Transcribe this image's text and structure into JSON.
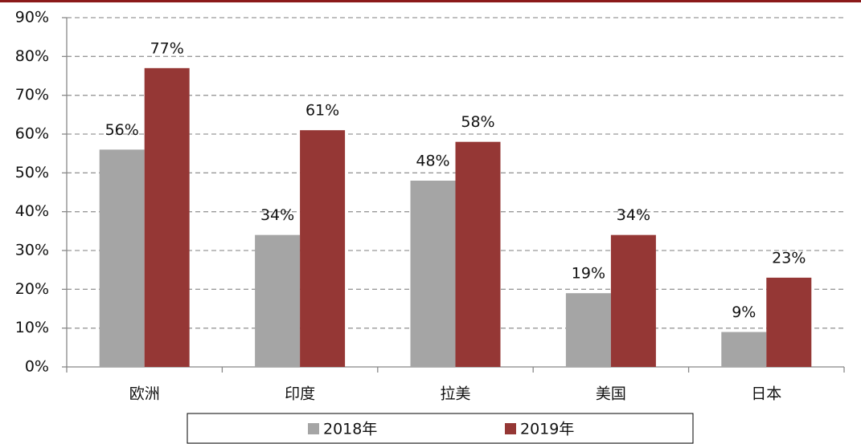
{
  "chart_data": {
    "type": "bar",
    "categories": [
      "欧洲",
      "印度",
      "拉美",
      "美国",
      "日本"
    ],
    "series": [
      {
        "name": "2018年",
        "color": "#a5a5a5",
        "values": [
          56,
          34,
          48,
          19,
          9
        ],
        "value_labels": [
          "56%",
          "34%",
          "48%",
          "19%",
          "9%"
        ]
      },
      {
        "name": "2019年",
        "color": "#953735",
        "values": [
          77,
          61,
          58,
          34,
          23
        ],
        "value_labels": [
          "77%",
          "61%",
          "58%",
          "34%",
          "23%"
        ]
      }
    ],
    "ylim": [
      0,
      90
    ],
    "yticks": [
      {
        "value": 0,
        "label": "0%"
      },
      {
        "value": 10,
        "label": "10%"
      },
      {
        "value": 20,
        "label": "20%"
      },
      {
        "value": 30,
        "label": "30%"
      },
      {
        "value": 40,
        "label": "40%"
      },
      {
        "value": 50,
        "label": "50%"
      },
      {
        "value": 60,
        "label": "60%"
      },
      {
        "value": 70,
        "label": "70%"
      },
      {
        "value": 80,
        "label": "80%"
      },
      {
        "value": 90,
        "label": "90%"
      }
    ],
    "grid": true,
    "legend": "bottom"
  }
}
